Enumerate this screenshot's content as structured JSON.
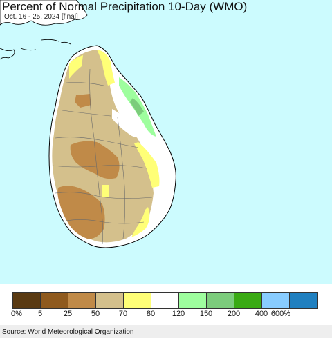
{
  "header": {
    "title": "Percent of Normal Precipitation 10-Day (WMO)",
    "subtitle": "Oct. 16 - 25, 2024 [final]"
  },
  "map": {
    "ocean_color": "#ccfbfe",
    "region": "Sri Lanka"
  },
  "legend": {
    "labels": [
      "0%",
      "5",
      "25",
      "50",
      "70",
      "80",
      "120",
      "150",
      "200",
      "400",
      "600%"
    ],
    "colors": [
      "#5a3a12",
      "#8f5a1e",
      "#c08a48",
      "#d4c08c",
      "#ffff77",
      "#ffffff",
      "#9efe9e",
      "#7ccc7c",
      "#3aaa14",
      "#88ccff",
      "#2080c0"
    ]
  },
  "footer": {
    "source": "Source: World Meteorological Organization"
  }
}
